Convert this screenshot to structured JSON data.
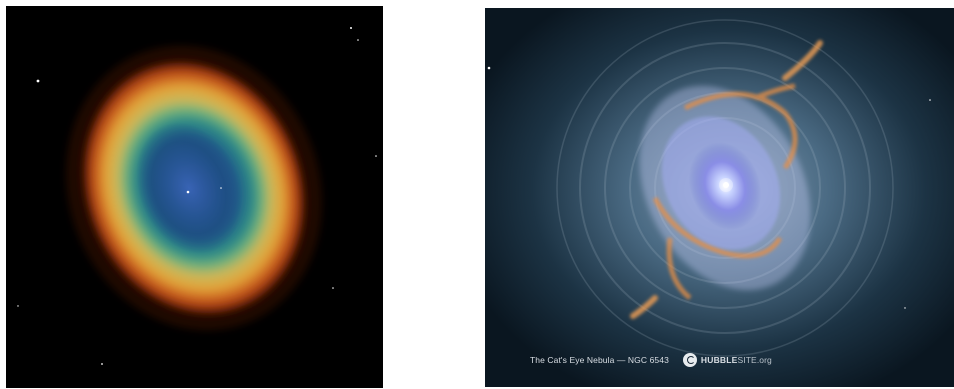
{
  "images": {
    "left": {
      "subject": "Ring Nebula",
      "colors": {
        "background": "#000000",
        "inner": "#1f4f86",
        "ring_inner": "#3fa08a",
        "ring_mid": "#c9a53a",
        "ring_outer": "#b23a12"
      }
    },
    "right": {
      "subject": "Cat's Eye Nebula",
      "caption": {
        "title": "The Cat's Eye Nebula — NGC 6543",
        "brand_strong": "HUBBLE",
        "brand_light": "SITE.org"
      },
      "colors": {
        "background": "#0b1a26",
        "halo": "#5f7f96",
        "core": "#9fb7ff",
        "filaments": "#e8944a"
      }
    }
  }
}
